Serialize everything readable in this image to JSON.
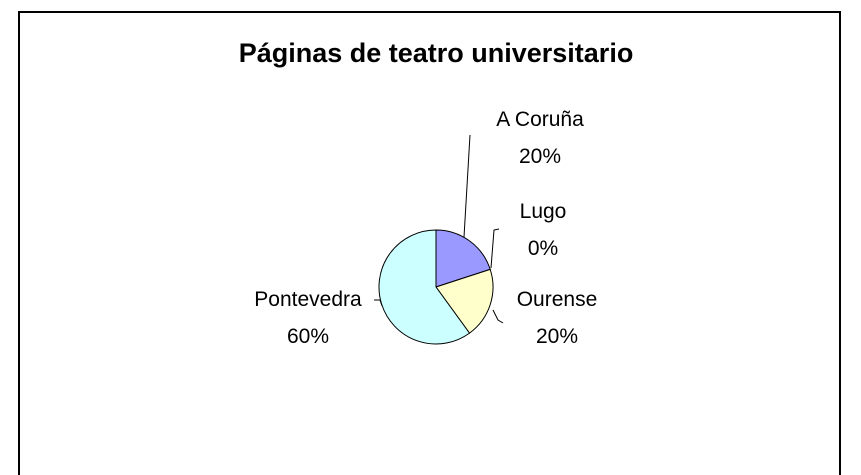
{
  "chart_data": {
    "type": "pie",
    "title": "Páginas de teatro universitario",
    "categories": [
      "A Coruña",
      "Lugo",
      "Ourense",
      "Pontevedra"
    ],
    "values": [
      20,
      0,
      20,
      60
    ],
    "value_labels": [
      "20%",
      "0%",
      "20%",
      "60%"
    ],
    "colors": [
      "#9999ff",
      "#993366",
      "#ffffcc",
      "#ccffff"
    ]
  }
}
